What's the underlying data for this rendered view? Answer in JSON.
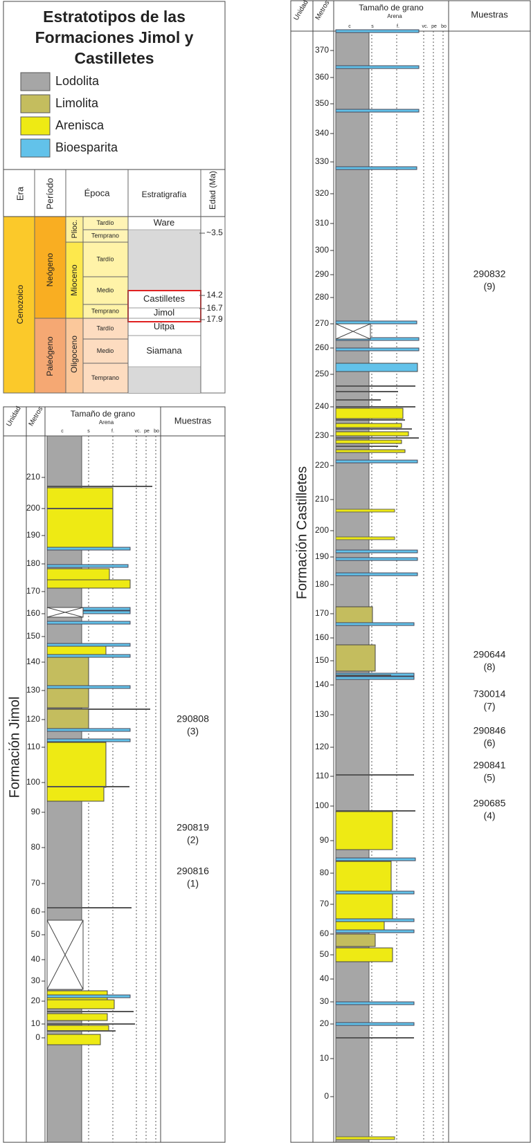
{
  "legend": {
    "title": [
      "Estratotipos de las",
      "Formaciones Jimol y",
      "Castilletes"
    ],
    "items": [
      "Lodolita",
      "Limolita",
      "Arenisca",
      "Bioesparita"
    ]
  },
  "time_table": {
    "headers": [
      "Era",
      "Período",
      "Época",
      "Estratigrafía",
      "Edad (Ma)"
    ],
    "era": "Cenozoico",
    "periods": [
      "Neógeno",
      "Paleógeno"
    ],
    "epochs": [
      "Plioc.",
      "Mioceno",
      "Oligoceno"
    ],
    "subepochs": [
      "Tardío",
      "Temprano",
      "Tardío",
      "Medio",
      "Temprano",
      "Tardío",
      "Medio",
      "Temprano"
    ],
    "formations": [
      "Ware",
      "Castilletes",
      "Jimol",
      "Uitpa",
      "Siamana"
    ],
    "ages": [
      "~3.5",
      "14.2",
      "16.7",
      "17.9"
    ]
  },
  "columns": [
    {
      "unit_header": "Unidad",
      "meters_header": "Metros",
      "grain_header": "Tamaño de grano",
      "sand_header": "Arena",
      "grain_labels": [
        "c",
        "s",
        "f.",
        "vc.",
        "pe",
        "bo"
      ],
      "samples_header": "Muestras",
      "unit": "Formación Jimol",
      "meters": [
        210,
        200,
        190,
        180,
        170,
        160,
        150,
        140,
        130,
        120,
        110,
        100,
        90,
        80,
        70,
        60,
        50,
        40,
        30,
        20,
        10,
        0
      ],
      "samples": [
        [
          "290808",
          "(3)"
        ],
        [
          "290819",
          "(2)"
        ],
        [
          "290816",
          "(1)"
        ]
      ]
    },
    {
      "unit_header": "Unidad",
      "meters_header": "Metros",
      "grain_header": "Tamaño de grano",
      "sand_header": "Arena",
      "grain_labels": [
        "c",
        "s",
        "f.",
        "vc.",
        "pe",
        "bo"
      ],
      "samples_header": "Muestras",
      "unit": "Formación Castilletes",
      "meters": [
        370,
        360,
        350,
        340,
        330,
        320,
        310,
        300,
        290,
        280,
        270,
        260,
        250,
        240,
        230,
        220,
        210,
        200,
        190,
        180,
        170,
        160,
        150,
        140,
        130,
        120,
        110,
        100,
        90,
        80,
        70,
        60,
        50,
        40,
        30,
        20,
        10,
        0
      ],
      "samples": [
        [
          "290832",
          "(9)"
        ],
        [
          "290644",
          "(8)"
        ],
        [
          "730014",
          "(7)"
        ],
        [
          "290846",
          "(6)"
        ],
        [
          "290841",
          "(5)"
        ],
        [
          "290685",
          "(4)"
        ]
      ]
    }
  ]
}
